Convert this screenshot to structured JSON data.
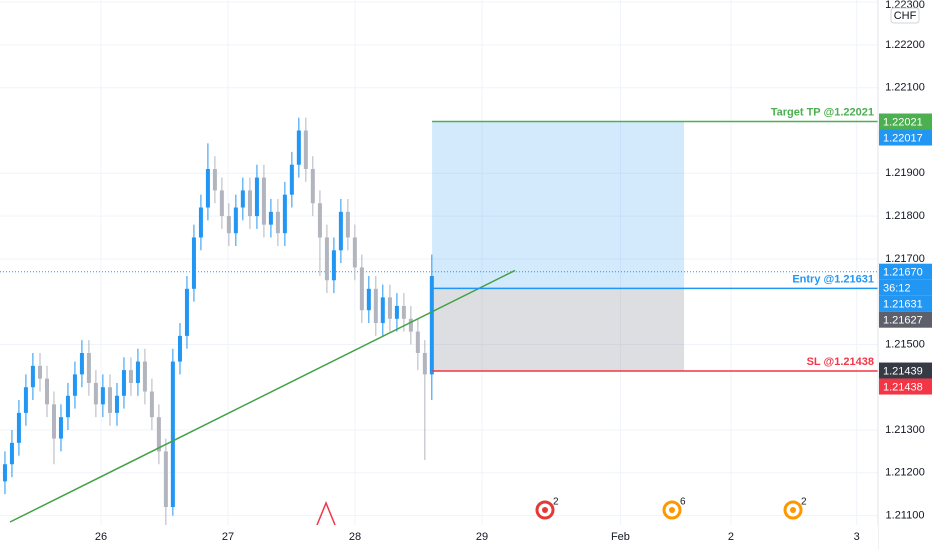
{
  "chart_data": {
    "type": "candlestick",
    "currency": "CHF",
    "up_color": "#2196f3",
    "down_color": "#b2b5be",
    "grid": true,
    "xlim": [
      25.205,
      32.118
    ],
    "xticks": [
      26,
      27,
      28,
      29,
      {
        "value": 30.09,
        "label": "Feb"
      },
      {
        "value": 30.96,
        "label": "2"
      },
      {
        "value": 31.95,
        "label": "3"
      }
    ],
    "ylim": [
      1.21078,
      1.22305
    ],
    "yticks": [
      {
        "value": 1.223,
        "label": "1.22300"
      },
      {
        "value": 1.222,
        "label": "1.22200"
      },
      {
        "value": 1.221,
        "label": "1.22100"
      },
      {
        "value": 1.219,
        "label": "1.21900"
      },
      {
        "value": 1.218,
        "label": "1.21800"
      },
      {
        "value": 1.217,
        "label": "1.21700"
      },
      {
        "value": 1.215,
        "label": "1.21500"
      },
      {
        "value": 1.213,
        "label": "1.21300"
      },
      {
        "value": 1.212,
        "label": "1.21200"
      },
      {
        "value": 1.211,
        "label": "1.21100"
      }
    ],
    "x": [
      25.244,
      25.299,
      25.354,
      25.409,
      25.464,
      25.52,
      25.575,
      25.63,
      25.685,
      25.74,
      25.795,
      25.85,
      25.905,
      25.96,
      26.015,
      26.071,
      26.126,
      26.181,
      26.236,
      26.291,
      26.346,
      26.401,
      26.456,
      26.511,
      26.566,
      26.622,
      26.677,
      26.732,
      26.787,
      26.842,
      26.897,
      26.952,
      27.007,
      27.062,
      27.117,
      27.173,
      27.228,
      27.283,
      27.338,
      27.393,
      27.448,
      27.503,
      27.558,
      27.613,
      27.668,
      27.724,
      27.779,
      27.834,
      27.889,
      27.944,
      27.999,
      28.054,
      28.109,
      28.164,
      28.219,
      28.275,
      28.33,
      28.385,
      28.44,
      28.495,
      28.55,
      28.605
    ],
    "open": [
      1.2118,
      1.2122,
      1.2127,
      1.2134,
      1.214,
      1.2145,
      1.2142,
      1.2136,
      1.2128,
      1.2133,
      1.2138,
      1.2143,
      1.2148,
      1.2141,
      1.2136,
      1.214,
      1.2134,
      1.2138,
      1.2144,
      1.2141,
      1.2146,
      1.2139,
      1.2133,
      1.2125,
      1.2112,
      1.2146,
      1.2152,
      1.2163,
      1.2175,
      1.2182,
      1.2191,
      1.2186,
      1.218,
      1.2176,
      1.2182,
      1.2186,
      1.218,
      1.2189,
      1.2178,
      1.2181,
      1.2176,
      1.2185,
      1.2192,
      1.22,
      1.2191,
      1.2183,
      1.2175,
      1.2165,
      1.2172,
      1.2181,
      1.2175,
      1.2168,
      1.2158,
      1.2163,
      1.2155,
      1.2161,
      1.2156,
      1.2159,
      1.2156,
      1.2153,
      1.2148,
      1.2143
    ],
    "high": [
      1.2125,
      1.213,
      1.2137,
      1.2143,
      1.2148,
      1.2148,
      1.2145,
      1.2139,
      1.2136,
      1.2141,
      1.2146,
      1.2151,
      1.2151,
      1.2144,
      1.2143,
      1.2143,
      1.2141,
      1.2147,
      1.2147,
      1.2149,
      1.2149,
      1.2142,
      1.2136,
      1.2128,
      1.2149,
      1.2155,
      1.2166,
      1.2178,
      1.2185,
      1.2197,
      1.2194,
      1.2189,
      1.2183,
      1.2185,
      1.2189,
      1.2189,
      1.2192,
      1.2192,
      1.2184,
      1.2184,
      1.2188,
      1.2195,
      1.2203,
      1.2203,
      1.2194,
      1.2186,
      1.2178,
      1.2175,
      1.2184,
      1.2184,
      1.2178,
      1.2171,
      1.2166,
      1.2166,
      1.2164,
      1.2164,
      1.2162,
      1.2162,
      1.2159,
      1.2156,
      1.2151,
      1.2171
    ],
    "low": [
      1.2115,
      1.2119,
      1.2124,
      1.2131,
      1.2137,
      1.2139,
      1.2133,
      1.2122,
      1.2125,
      1.213,
      1.2135,
      1.214,
      1.2138,
      1.2133,
      1.2133,
      1.2131,
      1.2131,
      1.2135,
      1.2138,
      1.2138,
      1.2136,
      1.213,
      1.2122,
      1.2106,
      1.211,
      1.2143,
      1.2149,
      1.216,
      1.2172,
      1.2179,
      1.2183,
      1.2177,
      1.2173,
      1.2173,
      1.2179,
      1.2177,
      1.2177,
      1.2175,
      1.2175,
      1.2173,
      1.2173,
      1.2182,
      1.2189,
      1.2188,
      1.218,
      1.2166,
      1.2162,
      1.2162,
      1.2169,
      1.2172,
      1.2165,
      1.2155,
      1.2155,
      1.2152,
      1.2152,
      1.2153,
      1.2153,
      1.2153,
      1.215,
      1.2144,
      1.2123,
      1.2137
    ],
    "close": [
      1.2122,
      1.2127,
      1.2134,
      1.214,
      1.2145,
      1.2142,
      1.2136,
      1.2128,
      1.2133,
      1.2138,
      1.2143,
      1.2148,
      1.2141,
      1.2136,
      1.214,
      1.2134,
      1.2138,
      1.2144,
      1.2141,
      1.2146,
      1.2139,
      1.2133,
      1.2125,
      1.2112,
      1.2146,
      1.2152,
      1.2163,
      1.2175,
      1.2182,
      1.2191,
      1.2186,
      1.218,
      1.2176,
      1.2182,
      1.2186,
      1.218,
      1.2189,
      1.2178,
      1.2181,
      1.2176,
      1.2185,
      1.2192,
      1.22,
      1.2191,
      1.2183,
      1.2175,
      1.2165,
      1.2172,
      1.2181,
      1.2175,
      1.2168,
      1.2158,
      1.2163,
      1.2155,
      1.2161,
      1.2156,
      1.2159,
      1.2156,
      1.2153,
      1.2148,
      1.2143,
      1.2166
    ],
    "last_price": 1.2167,
    "trendline": {
      "color": "#43a047",
      "x": [
        25.284,
        29.26
      ],
      "y": [
        1.21085,
        1.21673
      ]
    },
    "position": {
      "start": 28.607,
      "end": 30.591,
      "target": 1.22021,
      "entry": 1.21631,
      "stop": 1.21438,
      "target_label": "Target TP @1.22021",
      "entry_label": "Entry @1.21631",
      "stop_label": "SL @1.21438",
      "target_color": "#4caf50",
      "entry_color": "#2196f3",
      "stop_color": "#f23645"
    },
    "price_tags": [
      {
        "value": 1.22021,
        "label": "1.22021",
        "color": "#4caf50"
      },
      {
        "value": 1.22017,
        "label": "1.22017",
        "color": "#2196f3"
      },
      {
        "value": 1.2167,
        "label": "1.21670",
        "color": "#2196f3",
        "countdown": "36:12"
      },
      {
        "value": 1.21631,
        "label": "1.21631",
        "color": "#2196f3"
      },
      {
        "value": 1.21627,
        "label": "1.21627",
        "color": "#5d606b"
      },
      {
        "value": 1.21439,
        "label": "1.21439",
        "color": "#363a45"
      },
      {
        "value": 1.21438,
        "label": "1.21438",
        "color": "#f23645"
      }
    ],
    "marker": {
      "x": 27.772,
      "color": "#f23645"
    },
    "events": [
      {
        "x": 29.496,
        "count": 2,
        "color": "#e53935"
      },
      {
        "x": 30.496,
        "count": 6,
        "color": "#ff9800"
      },
      {
        "x": 31.449,
        "count": 2,
        "color": "#ff9800"
      }
    ]
  }
}
